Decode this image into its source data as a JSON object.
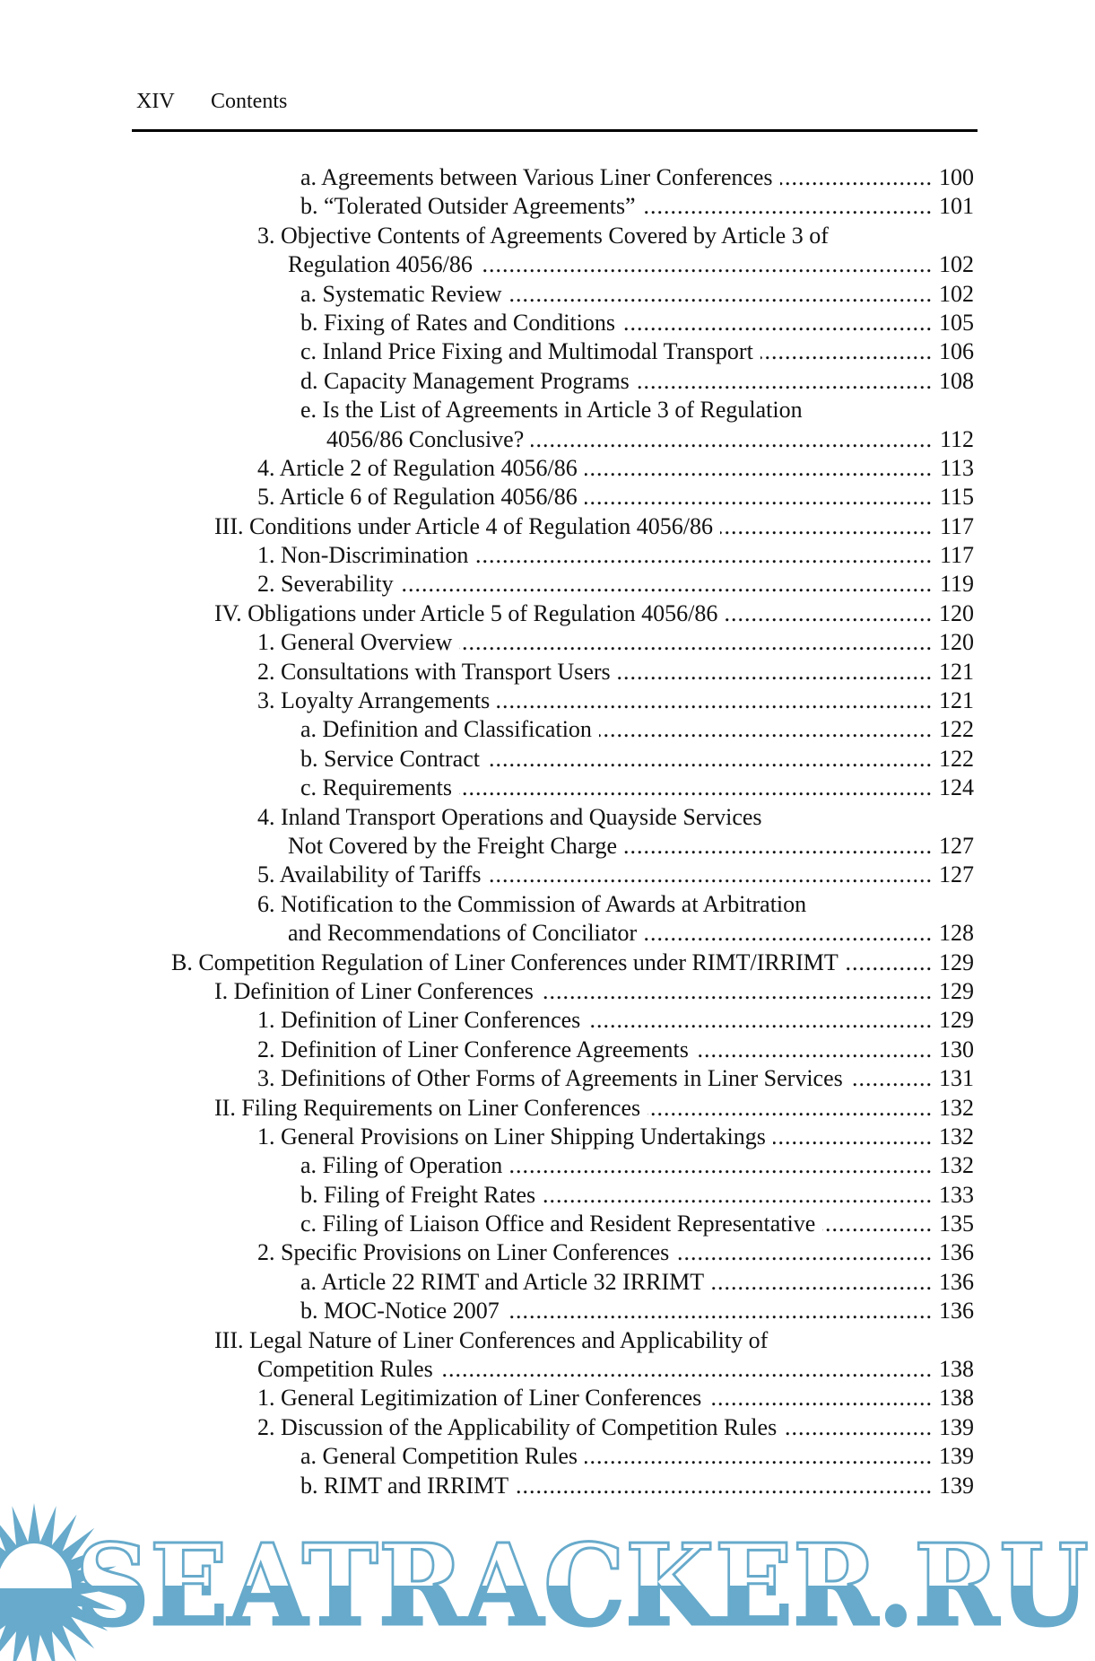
{
  "header": {
    "page_number": "XIV",
    "running_title": "Contents"
  },
  "toc": [
    {
      "level": 3,
      "text": "a. Agreements between Various Liner Conferences",
      "page": "100"
    },
    {
      "level": 3,
      "text": "b. “Tolerated Outsider Agreements”",
      "page": "101"
    },
    {
      "level": 2,
      "text": "3. Objective Contents of Agreements Covered by Article 3 of"
    },
    {
      "level": 2,
      "cont": true,
      "text": "Regulation 4056/86",
      "page": "102"
    },
    {
      "level": 3,
      "text": "a. Systematic Review",
      "page": "102"
    },
    {
      "level": 3,
      "text": "b. Fixing of Rates and Conditions",
      "page": "105"
    },
    {
      "level": 3,
      "text": "c. Inland Price Fixing and Multimodal Transport",
      "page": "106"
    },
    {
      "level": 3,
      "text": "d. Capacity Management Programs",
      "page": "108"
    },
    {
      "level": 3,
      "text": "e. Is the List of Agreements in Article 3 of Regulation"
    },
    {
      "level": 3,
      "cont": true,
      "text": "4056/86 Conclusive?",
      "page": "112"
    },
    {
      "level": 2,
      "text": "4. Article 2 of Regulation 4056/86",
      "page": "113"
    },
    {
      "level": 2,
      "text": "5. Article 6 of Regulation 4056/86",
      "page": "115"
    },
    {
      "level": 1,
      "text": "III. Conditions under Article 4 of Regulation 4056/86",
      "page": "117"
    },
    {
      "level": 2,
      "text": "1. Non-Discrimination",
      "page": "117"
    },
    {
      "level": 2,
      "text": "2. Severability",
      "page": "119"
    },
    {
      "level": 1,
      "text": "IV. Obligations under Article 5 of Regulation 4056/86",
      "page": "120"
    },
    {
      "level": 2,
      "text": "1. General Overview",
      "page": "120"
    },
    {
      "level": 2,
      "text": "2. Consultations with Transport Users",
      "page": "121"
    },
    {
      "level": 2,
      "text": "3. Loyalty Arrangements",
      "page": "121"
    },
    {
      "level": 3,
      "text": "a. Definition and Classification",
      "page": "122"
    },
    {
      "level": 3,
      "text": "b. Service Contract",
      "page": "122"
    },
    {
      "level": 3,
      "text": "c. Requirements",
      "page": "124"
    },
    {
      "level": 2,
      "text": "4. Inland Transport Operations and Quayside Services"
    },
    {
      "level": 2,
      "cont": true,
      "text": "Not Covered by the Freight Charge",
      "page": "127"
    },
    {
      "level": 2,
      "text": "5. Availability of Tariffs",
      "page": "127"
    },
    {
      "level": 2,
      "text": "6. Notification to the Commission of Awards at Arbitration"
    },
    {
      "level": 2,
      "cont": true,
      "text": "and Recommendations of Conciliator",
      "page": "128"
    },
    {
      "level": 0,
      "text": "B. Competition Regulation of Liner Conferences under RIMT/IRRIMT",
      "page": "129"
    },
    {
      "level": 1,
      "text": "I. Definition of Liner Conferences",
      "page": "129"
    },
    {
      "level": 2,
      "text": "1. Definition of Liner Conferences",
      "page": "129"
    },
    {
      "level": 2,
      "text": "2. Definition of Liner Conference Agreements",
      "page": "130"
    },
    {
      "level": 2,
      "text": "3. Definitions of Other Forms of Agreements in Liner Services",
      "page": "131"
    },
    {
      "level": 1,
      "text": "II. Filing Requirements on Liner Conferences",
      "page": "132"
    },
    {
      "level": 2,
      "text": "1. General Provisions on Liner Shipping Undertakings",
      "page": "132"
    },
    {
      "level": 3,
      "text": "a. Filing of Operation",
      "page": "132"
    },
    {
      "level": 3,
      "text": "b. Filing of Freight Rates",
      "page": "133"
    },
    {
      "level": 3,
      "text": "c. Filing of Liaison Office and Resident Representative",
      "page": "135"
    },
    {
      "level": 2,
      "text": "2. Specific Provisions on Liner Conferences",
      "page": "136"
    },
    {
      "level": 3,
      "text": "a. Article 22 RIMT and Article 32 IRRIMT",
      "page": "136"
    },
    {
      "level": 3,
      "text": "b. MOC-Notice 2007",
      "page": "136"
    },
    {
      "level": 1,
      "text": "III. Legal Nature of Liner Conferences and Applicability of"
    },
    {
      "level": 1,
      "cont": true,
      "text": "Competition Rules",
      "page": "138"
    },
    {
      "level": 2,
      "text": "1. General Legitimization of Liner Conferences",
      "page": "138"
    },
    {
      "level": 2,
      "text": "2. Discussion of the Applicability of Competition Rules",
      "page": "139"
    },
    {
      "level": 3,
      "text": "a. General Competition Rules",
      "page": "139"
    },
    {
      "level": 3,
      "text": "b. RIMT and IRRIMT",
      "page": "139"
    }
  ],
  "watermark": {
    "text": "SEATRACKER.RU",
    "color": "#67aacb",
    "icon": "sun-icon"
  }
}
